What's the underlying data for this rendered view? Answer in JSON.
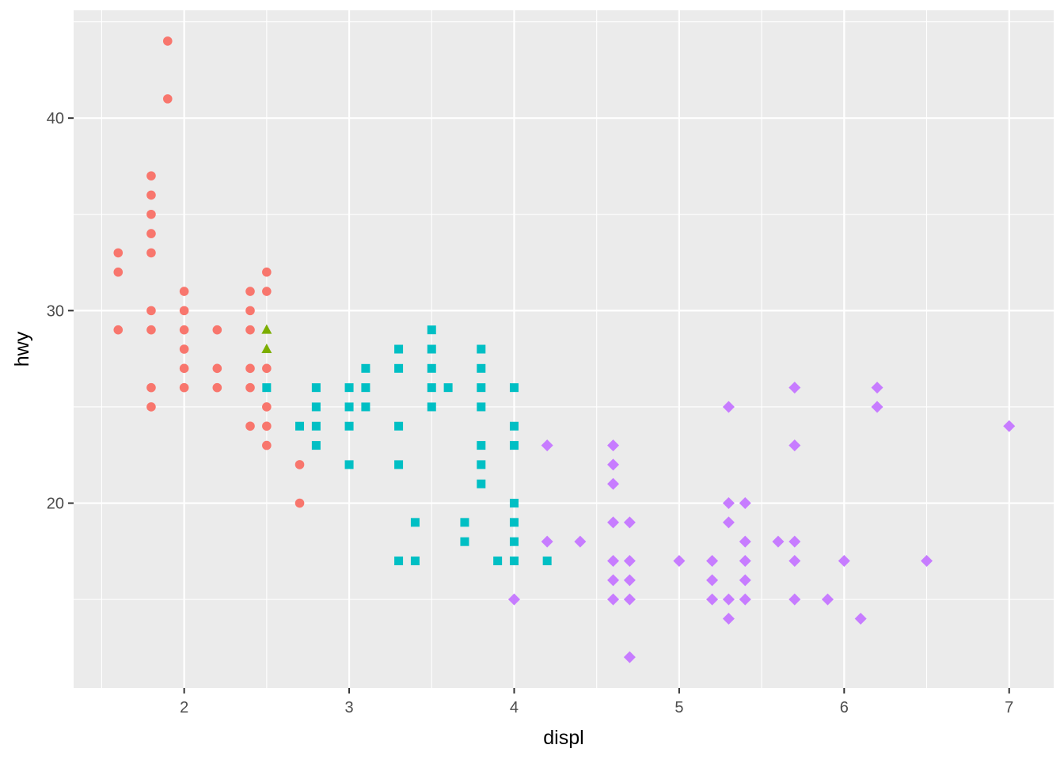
{
  "chart_data": {
    "type": "scatter",
    "title": "",
    "xlabel": "displ",
    "ylabel": "hwy",
    "xlim": [
      1.33,
      7.27
    ],
    "ylim": [
      10.4,
      45.6
    ],
    "x_ticks": [
      2,
      3,
      4,
      5,
      6,
      7
    ],
    "x_tick_labels": [
      "2",
      "3",
      "4",
      "5",
      "6",
      "7"
    ],
    "y_ticks": [
      20,
      30,
      40
    ],
    "y_tick_labels": [
      "20",
      "30",
      "40"
    ],
    "grid": true,
    "legend": "none",
    "colors": {
      "panel_background": "#ebebeb",
      "grid": "#ffffff",
      "tick_text": "#4d4d4d",
      "axis_title": "#000000"
    },
    "series": [
      {
        "shape": "circle",
        "color": "#f8766d",
        "points": [
          [
            1.6,
            33
          ],
          [
            1.6,
            32
          ],
          [
            1.6,
            29
          ],
          [
            1.8,
            37
          ],
          [
            1.8,
            36
          ],
          [
            1.8,
            35
          ],
          [
            1.8,
            34
          ],
          [
            1.8,
            33
          ],
          [
            1.8,
            30
          ],
          [
            1.8,
            29
          ],
          [
            1.8,
            26
          ],
          [
            1.8,
            25
          ],
          [
            1.9,
            44
          ],
          [
            1.9,
            41
          ],
          [
            2.0,
            31
          ],
          [
            2.0,
            30
          ],
          [
            2.0,
            29
          ],
          [
            2.0,
            28
          ],
          [
            2.0,
            27
          ],
          [
            2.0,
            26
          ],
          [
            2.2,
            29
          ],
          [
            2.2,
            27
          ],
          [
            2.2,
            26
          ],
          [
            2.4,
            31
          ],
          [
            2.4,
            30
          ],
          [
            2.4,
            29
          ],
          [
            2.4,
            27
          ],
          [
            2.4,
            26
          ],
          [
            2.4,
            24
          ],
          [
            2.5,
            32
          ],
          [
            2.5,
            31
          ],
          [
            2.5,
            27
          ],
          [
            2.5,
            25
          ],
          [
            2.5,
            24
          ],
          [
            2.5,
            23
          ],
          [
            2.7,
            22
          ],
          [
            2.7,
            20
          ]
        ]
      },
      {
        "shape": "triangle",
        "color": "#7cae00",
        "points": [
          [
            2.5,
            29
          ],
          [
            2.5,
            28
          ]
        ]
      },
      {
        "shape": "square",
        "color": "#00bfc4",
        "points": [
          [
            2.5,
            26
          ],
          [
            2.7,
            24
          ],
          [
            2.8,
            26
          ],
          [
            2.8,
            25
          ],
          [
            2.8,
            24
          ],
          [
            2.8,
            23
          ],
          [
            3.0,
            26
          ],
          [
            3.0,
            25
          ],
          [
            3.0,
            24
          ],
          [
            3.0,
            22
          ],
          [
            3.1,
            27
          ],
          [
            3.1,
            26
          ],
          [
            3.1,
            25
          ],
          [
            3.3,
            28
          ],
          [
            3.3,
            27
          ],
          [
            3.3,
            24
          ],
          [
            3.3,
            22
          ],
          [
            3.3,
            17
          ],
          [
            3.4,
            19
          ],
          [
            3.4,
            17
          ],
          [
            3.5,
            29
          ],
          [
            3.5,
            28
          ],
          [
            3.5,
            27
          ],
          [
            3.5,
            26
          ],
          [
            3.5,
            25
          ],
          [
            3.6,
            26
          ],
          [
            3.7,
            19
          ],
          [
            3.7,
            18
          ],
          [
            3.8,
            28
          ],
          [
            3.8,
            27
          ],
          [
            3.8,
            26
          ],
          [
            3.8,
            25
          ],
          [
            3.8,
            23
          ],
          [
            3.8,
            22
          ],
          [
            3.8,
            21
          ],
          [
            3.9,
            17
          ],
          [
            4.0,
            26
          ],
          [
            4.0,
            24
          ],
          [
            4.0,
            23
          ],
          [
            4.0,
            20
          ],
          [
            4.0,
            19
          ],
          [
            4.0,
            18
          ],
          [
            4.0,
            17
          ],
          [
            4.2,
            17
          ]
        ]
      },
      {
        "shape": "diamond",
        "color": "#c77cff",
        "points": [
          [
            4.0,
            15
          ],
          [
            4.2,
            23
          ],
          [
            4.2,
            18
          ],
          [
            4.4,
            18
          ],
          [
            4.6,
            23
          ],
          [
            4.6,
            22
          ],
          [
            4.6,
            21
          ],
          [
            4.6,
            19
          ],
          [
            4.6,
            17
          ],
          [
            4.6,
            16
          ],
          [
            4.6,
            15
          ],
          [
            4.7,
            19
          ],
          [
            4.7,
            17
          ],
          [
            4.7,
            16
          ],
          [
            4.7,
            15
          ],
          [
            4.7,
            12
          ],
          [
            5.0,
            17
          ],
          [
            5.2,
            17
          ],
          [
            5.2,
            16
          ],
          [
            5.2,
            15
          ],
          [
            5.3,
            25
          ],
          [
            5.3,
            20
          ],
          [
            5.3,
            19
          ],
          [
            5.3,
            15
          ],
          [
            5.3,
            14
          ],
          [
            5.4,
            20
          ],
          [
            5.4,
            18
          ],
          [
            5.4,
            17
          ],
          [
            5.4,
            16
          ],
          [
            5.4,
            15
          ],
          [
            5.6,
            18
          ],
          [
            5.7,
            26
          ],
          [
            5.7,
            23
          ],
          [
            5.7,
            18
          ],
          [
            5.7,
            17
          ],
          [
            5.7,
            15
          ],
          [
            5.9,
            15
          ],
          [
            6.0,
            17
          ],
          [
            6.1,
            14
          ],
          [
            6.2,
            26
          ],
          [
            6.2,
            25
          ],
          [
            6.5,
            17
          ],
          [
            7.0,
            24
          ]
        ]
      }
    ]
  }
}
